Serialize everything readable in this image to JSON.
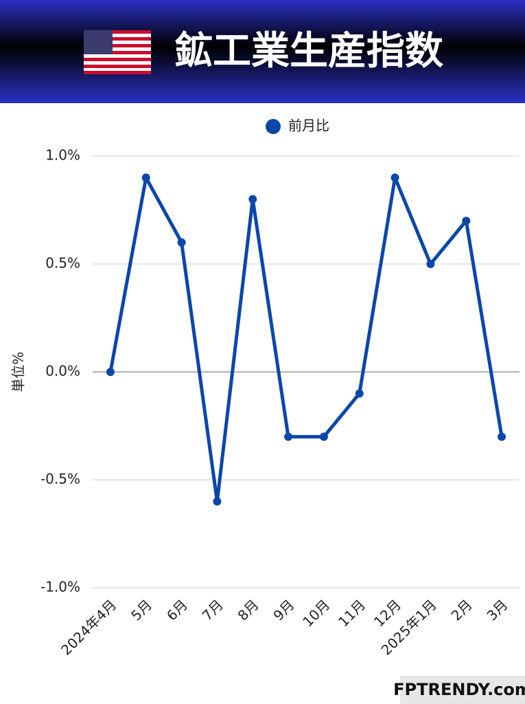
{
  "chart_data": {
    "type": "line",
    "title": "鉱工業生産指数",
    "ylabel": "単位%",
    "watermark": "FPTRENDY.com",
    "categories": [
      "2024年4月",
      "5月",
      "6月",
      "7月",
      "8月",
      "9月",
      "10月",
      "11月",
      "12月",
      "2025年1月",
      "2月",
      "3月"
    ],
    "series": [
      {
        "name": "前月比",
        "color": "#0a47a9",
        "values": [
          0,
          0.9,
          0.6,
          -0.6,
          0.8,
          -0.3,
          -0.3,
          -0.1,
          0.9,
          0.5,
          0.7,
          -0.3
        ]
      }
    ],
    "ylim": [
      -1,
      1
    ],
    "yticks": [
      {
        "value": 1,
        "label": "1.0%"
      },
      {
        "value": 0.5,
        "label": "0.5%"
      },
      {
        "value": 0,
        "label": "0.0%"
      },
      {
        "value": -0.5,
        "label": "-0.5%"
      },
      {
        "value": -1,
        "label": "-1.0%"
      }
    ],
    "grid": true
  }
}
